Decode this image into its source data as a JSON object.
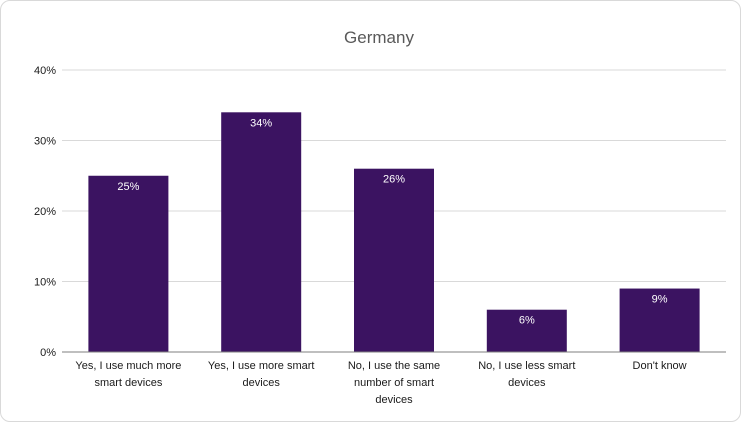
{
  "chart_data": {
    "type": "bar",
    "title": "Germany",
    "categories": [
      [
        "Yes, I use much more",
        "smart devices"
      ],
      [
        "Yes, I use more smart",
        "devices"
      ],
      [
        "No, I use the same",
        "number of smart",
        "devices"
      ],
      [
        "No, I use less smart",
        "devices"
      ],
      [
        "Don't know"
      ]
    ],
    "values": [
      25,
      34,
      26,
      6,
      9
    ],
    "data_labels": [
      "25%",
      "34%",
      "26%",
      "6%",
      "9%"
    ],
    "yticks": [
      {
        "value": 0,
        "label": "0%"
      },
      {
        "value": 10,
        "label": "10%"
      },
      {
        "value": 20,
        "label": "20%"
      },
      {
        "value": 30,
        "label": "30%"
      },
      {
        "value": 40,
        "label": "40%"
      }
    ],
    "ylim": [
      0,
      40
    ],
    "grid": true,
    "bar_color": "#3b1361",
    "grid_color": "#d9d9d9",
    "axis_color": "#7f7f7f"
  }
}
